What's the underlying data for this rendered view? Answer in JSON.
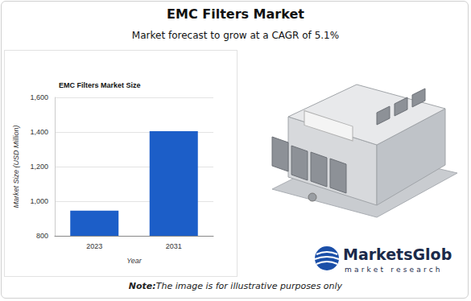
{
  "header": {
    "title": "EMC Filters Market",
    "subtitle": "Market forecast to grow at a CAGR of 5.1%"
  },
  "chart_data": {
    "type": "bar",
    "title": "EMC Filters Market Size",
    "x_label": "Year",
    "y_label": "Market Size (USD Million)",
    "categories": [
      "2023",
      "2031"
    ],
    "values": [
      945,
      1405
    ],
    "color": "#1c5ec8",
    "ylim": [
      800,
      1600
    ],
    "yticks": [
      800,
      {
        "value": 1000,
        "label": "1,000"
      },
      {
        "value": 1200,
        "label": "1,200"
      },
      {
        "value": 1400,
        "label": "1,400"
      },
      {
        "value": 1600,
        "label": "1,600"
      }
    ],
    "grid": true
  },
  "logo": {
    "name": "MarketsGlob",
    "tagline": "market research"
  },
  "note": {
    "lead": "Note:",
    "text": "The image is for illustrative purposes only"
  }
}
